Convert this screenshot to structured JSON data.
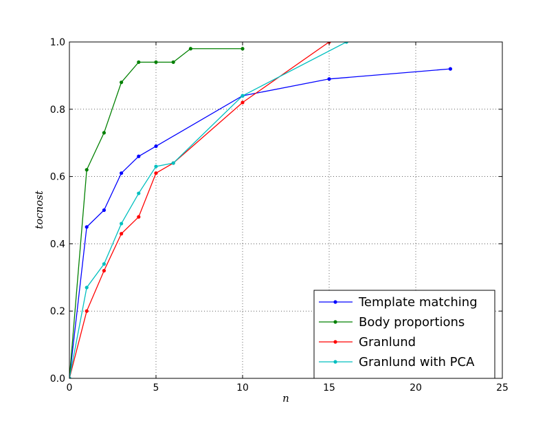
{
  "chart_data": {
    "type": "line",
    "title": "",
    "xlabel": "n",
    "ylabel": "tocnost",
    "xlim": [
      0,
      25
    ],
    "ylim": [
      0.0,
      1.0
    ],
    "x_ticks": [
      "0",
      "5",
      "10",
      "15",
      "20",
      "25"
    ],
    "y_ticks": [
      "0.0",
      "0.2",
      "0.4",
      "0.6",
      "0.8",
      "1.0"
    ],
    "grid": true,
    "legend_position": "lower-right",
    "series": [
      {
        "name": "Template matching",
        "color": "#0000ff",
        "x": [
          0,
          1,
          2,
          3,
          4,
          5,
          10,
          15,
          22
        ],
        "y": [
          0.0,
          0.45,
          0.5,
          0.61,
          0.66,
          0.69,
          0.84,
          0.89,
          0.92
        ]
      },
      {
        "name": "Body proportions",
        "color": "#008000",
        "x": [
          0,
          1,
          2,
          3,
          4,
          5,
          6,
          7,
          10
        ],
        "y": [
          0.0,
          0.62,
          0.73,
          0.88,
          0.94,
          0.94,
          0.94,
          0.98,
          0.98
        ]
      },
      {
        "name": "Granlund",
        "color": "#ff0000",
        "x": [
          0,
          1,
          2,
          3,
          4,
          5,
          6,
          10,
          15
        ],
        "y": [
          0.0,
          0.2,
          0.32,
          0.43,
          0.48,
          0.61,
          0.64,
          0.82,
          1.0
        ]
      },
      {
        "name": "Granlund with PCA",
        "color": "#00bfbf",
        "x": [
          0,
          1,
          2,
          3,
          4,
          5,
          6,
          10,
          16
        ],
        "y": [
          0.0,
          0.27,
          0.34,
          0.46,
          0.55,
          0.63,
          0.64,
          0.84,
          1.0
        ]
      }
    ]
  }
}
